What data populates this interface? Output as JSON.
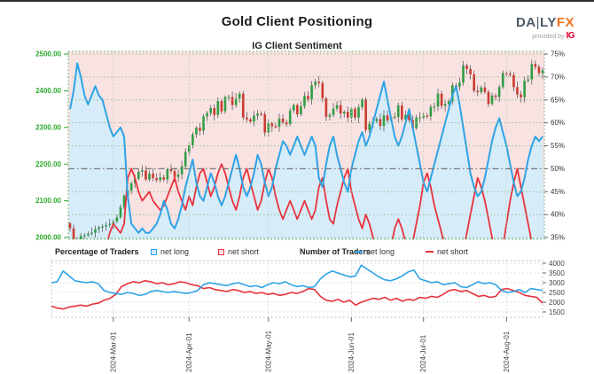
{
  "header": {
    "title": "Gold Client Positioning",
    "subtitle": "IG Client Sentiment"
  },
  "logo": {
    "brand": "DA",
    "bar": "|",
    "brand2": "LY",
    "accent": "FX",
    "provided_by": "provided by",
    "provider": "IG"
  },
  "legend": {
    "percentage_title": "Percentage of Traders",
    "number_title": "Number of Traders",
    "net_long": "net long",
    "net_short": "net short",
    "net_long2": "net long",
    "net_short2": "net short"
  },
  "colors": {
    "background_above": "#f9e2e2",
    "net_long_fill": "#d7ecf9",
    "net_long_line": "#2ea3e6",
    "net_short_line": "#e8323c",
    "candle_up": "#2f9e44",
    "candle_down": "#cc3a30",
    "wick": "#4a4a4a",
    "price_axis_text": "#2faa2f",
    "pct_axis_text": "#333333",
    "grid_green": "#72b872",
    "grid_gray": "#b9cdb9",
    "ref_line": "#777777",
    "bottom_grid": "#d2d2d2",
    "axis_text": "#444444"
  },
  "chart_data": [
    {
      "type": "candlestick+line",
      "title": "IG Client Sentiment",
      "price_axis": {
        "side": "left",
        "labels": [
          "2500.00",
          "2400.00",
          "2300.00",
          "2200.00",
          "2100.00",
          "2000.00"
        ],
        "min": 2000,
        "max": 2500
      },
      "pct_axis": {
        "side": "right",
        "labels": [
          "75%",
          "70%",
          "65%",
          "60%",
          "55%",
          "50%",
          "45%",
          "40%",
          "35%"
        ],
        "min": 35,
        "max": 75
      },
      "reference_line_pct": 50,
      "x_ticks": {
        "labels": [
          "2024-Mar-01",
          "2024-Apr-01",
          "2024-May-01",
          "2024-Jun-01",
          "2024-Jul-01",
          "2024-Aug-01"
        ],
        "day_index": [
          12,
          33,
          55,
          78,
          98,
          121
        ]
      },
      "candles_close": [
        2025,
        1993,
        1991,
        2004,
        2006,
        2010,
        2013,
        2023,
        2028,
        2030,
        2034,
        2037,
        2044,
        2055,
        2083,
        2114,
        2128,
        2148,
        2160,
        2179,
        2183,
        2158,
        2174,
        2162,
        2156,
        2164,
        2158,
        2186,
        2181,
        2165,
        2172,
        2194,
        2233,
        2251,
        2281,
        2299,
        2291,
        2330,
        2339,
        2353,
        2334,
        2372,
        2344,
        2383,
        2383,
        2361,
        2379,
        2392,
        2327,
        2322,
        2316,
        2332,
        2338,
        2336,
        2286,
        2311,
        2303,
        2302,
        2324,
        2314,
        2309,
        2346,
        2361,
        2336,
        2358,
        2386,
        2377,
        2415,
        2425,
        2421,
        2379,
        2329,
        2334,
        2351,
        2361,
        2338,
        2343,
        2327,
        2351,
        2327,
        2355,
        2376,
        2293,
        2310,
        2317,
        2323,
        2304,
        2333,
        2319,
        2329,
        2329,
        2360,
        2322,
        2334,
        2320,
        2298,
        2327,
        2327,
        2332,
        2330,
        2356,
        2357,
        2392,
        2359,
        2364,
        2371,
        2415,
        2411,
        2422,
        2469,
        2459,
        2445,
        2400,
        2396,
        2409,
        2397,
        2364,
        2387,
        2383,
        2410,
        2448,
        2446,
        2443,
        2410,
        2390,
        2382,
        2427,
        2431,
        2473,
        2465,
        2448,
        2456
      ],
      "net_long_pct": [
        63,
        67,
        73,
        70,
        66,
        64,
        66,
        68,
        66,
        65,
        62,
        59,
        57,
        58,
        59,
        57,
        44,
        38,
        37,
        36,
        37,
        36,
        36,
        37,
        38,
        40,
        43,
        41,
        38,
        37,
        39,
        42,
        46,
        49,
        52,
        47,
        44,
        43,
        46,
        49,
        47,
        44,
        42,
        44,
        47,
        50,
        53,
        50,
        46,
        44,
        46,
        49,
        53,
        51,
        47,
        44,
        46,
        50,
        53,
        56,
        55,
        53,
        55,
        57,
        55,
        53,
        55,
        57,
        55,
        48,
        46,
        51,
        55,
        57,
        53,
        50,
        47,
        45,
        50,
        53,
        56,
        58,
        55,
        57,
        60,
        63,
        66,
        69,
        65,
        61,
        57,
        55,
        57,
        60,
        63,
        59,
        55,
        51,
        47,
        45,
        48,
        51,
        54,
        57,
        60,
        63,
        66,
        68,
        64,
        59,
        54,
        49,
        46,
        44,
        45,
        48,
        52,
        56,
        59,
        61,
        58,
        55,
        51,
        47,
        44,
        45,
        48,
        52,
        55,
        57,
        56,
        57
      ],
      "net_short_pct": [
        30,
        28,
        25,
        27,
        29,
        30,
        30,
        29,
        30,
        31,
        33,
        36,
        38,
        37,
        36,
        38,
        48,
        50,
        48,
        45,
        43,
        44,
        45,
        43,
        42,
        41,
        42,
        44,
        46,
        48,
        45,
        43,
        41,
        44,
        42,
        46,
        49,
        50,
        47,
        44,
        46,
        49,
        51,
        49,
        46,
        43,
        41,
        44,
        48,
        50,
        47,
        44,
        41,
        43,
        47,
        50,
        48,
        44,
        41,
        39,
        41,
        43,
        41,
        39,
        41,
        43,
        41,
        39,
        41,
        46,
        48,
        43,
        39,
        38,
        42,
        45,
        48,
        50,
        45,
        42,
        39,
        37,
        40,
        38,
        35,
        32,
        29,
        27,
        30,
        33,
        37,
        39,
        37,
        34,
        31,
        34,
        38,
        42,
        47,
        49,
        46,
        42,
        39,
        36,
        33,
        30,
        28,
        26,
        29,
        32,
        36,
        40,
        44,
        48,
        46,
        43,
        39,
        35,
        32,
        30,
        33,
        38,
        43,
        47,
        50,
        46,
        42,
        38,
        34,
        31,
        32,
        30
      ]
    },
    {
      "type": "line",
      "count_axis": {
        "side": "right",
        "labels": [
          "4000",
          "3500",
          "3000",
          "2500",
          "2000",
          "1500"
        ],
        "min": 1500,
        "max": 4000
      },
      "traders_long": [
        3000,
        3050,
        3600,
        3350,
        3100,
        3050,
        3000,
        3050,
        2950,
        2600,
        2500,
        2450,
        2400,
        2500,
        2450,
        2350,
        2400,
        2550,
        2600,
        2550,
        2500,
        2550,
        2500,
        2450,
        2500,
        2600,
        2900,
        3000,
        2950,
        2900,
        2850,
        2950,
        3000,
        2900,
        2800,
        2850,
        2750,
        2900,
        3000,
        2950,
        3050,
        2900,
        2800,
        2850,
        2750,
        2800,
        3200,
        3450,
        3600,
        3500,
        3400,
        3300,
        3350,
        3900,
        3700,
        3500,
        3300,
        3150,
        3100,
        3200,
        3350,
        3550,
        3650,
        3200,
        3100,
        3000,
        3050,
        2900,
        2950,
        3000,
        2800,
        2750,
        2900,
        3050,
        2950,
        3000,
        2900,
        2600,
        2500,
        2550,
        2650,
        2500,
        2700,
        2650,
        2600
      ],
      "traders_short": [
        1800,
        1700,
        1650,
        1750,
        1800,
        1850,
        1800,
        1900,
        1950,
        2100,
        2200,
        2400,
        2800,
        2950,
        3050,
        3000,
        3100,
        3050,
        2950,
        3000,
        2900,
        2950,
        3050,
        3000,
        2900,
        2850,
        2700,
        2750,
        2650,
        2600,
        2550,
        2650,
        2600,
        2500,
        2550,
        2450,
        2500,
        2400,
        2450,
        2350,
        2400,
        2500,
        2450,
        2550,
        2700,
        2650,
        2300,
        2100,
        2050,
        2150,
        2000,
        2100,
        1850,
        2000,
        2100,
        2200,
        2150,
        2250,
        2100,
        2200,
        2050,
        2150,
        2100,
        2250,
        2200,
        2300,
        2250,
        2400,
        2600,
        2650,
        2550,
        2600,
        2450,
        2300,
        2350,
        2250,
        2300,
        2650,
        2700,
        2600,
        2500,
        2350,
        2300,
        2250,
        1950
      ]
    }
  ]
}
